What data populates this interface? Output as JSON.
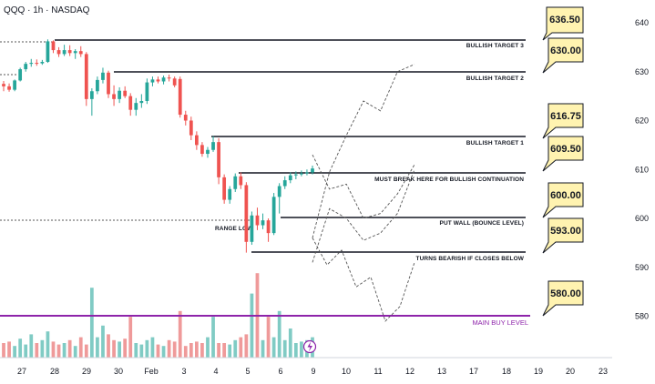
{
  "chart_data": {
    "type": "candlestick",
    "title": "QQQ · 1h · NASDAQ",
    "y_axis": {
      "ticks": [
        580,
        590,
        600,
        610,
        620,
        630,
        640
      ],
      "position": "right"
    },
    "x_axis": {
      "ticks": [
        "27",
        "28",
        "29",
        "30",
        "Feb",
        "3",
        "4",
        "5",
        "6",
        "9",
        "10",
        "11",
        "12",
        "13",
        "17",
        "18",
        "19",
        "20",
        "23"
      ]
    },
    "levels": [
      {
        "name": "BULLISH TARGET 3",
        "price": 636.5,
        "callout": "636.50"
      },
      {
        "name": "BULLISH TARGET 2",
        "price": 630.0,
        "callout": "630.00"
      },
      {
        "name": "BULLISH TARGET 1",
        "price": 616.75,
        "callout": "616.75"
      },
      {
        "name": "MUST BREAK HERE FOR BULLISH CONTINUATION",
        "price": 609.5,
        "callout": "609.50"
      },
      {
        "name": "PUT WALL (BOUNCE LEVEL)",
        "price": 600.0,
        "callout": "600.00"
      },
      {
        "name": "TURNS BEARISH IF CLOSES BELOW",
        "price": 593.0,
        "callout": "593.00"
      },
      {
        "name": "MAIN BUY LEVEL",
        "price": 580.0,
        "callout": "580.00"
      }
    ],
    "annotations": [
      "RANGE LOW"
    ],
    "candles": [
      {
        "o": 627.5,
        "h": 628.1,
        "l": 626.0,
        "c": 627.0
      },
      {
        "o": 627.0,
        "h": 627.6,
        "l": 625.9,
        "c": 626.3
      },
      {
        "o": 626.3,
        "h": 628.4,
        "l": 626.0,
        "c": 628.2
      },
      {
        "o": 628.2,
        "h": 630.8,
        "l": 628.0,
        "c": 630.5
      },
      {
        "o": 630.5,
        "h": 632.0,
        "l": 630.0,
        "c": 631.6
      },
      {
        "o": 631.6,
        "h": 632.6,
        "l": 631.0,
        "c": 631.8
      },
      {
        "o": 631.8,
        "h": 632.5,
        "l": 631.2,
        "c": 631.7
      },
      {
        "o": 631.7,
        "h": 632.4,
        "l": 631.4,
        "c": 632.0
      },
      {
        "o": 632.0,
        "h": 636.6,
        "l": 631.8,
        "c": 636.2
      },
      {
        "o": 636.2,
        "h": 636.4,
        "l": 633.8,
        "c": 634.4
      },
      {
        "o": 634.4,
        "h": 635.0,
        "l": 633.0,
        "c": 633.6
      },
      {
        "o": 633.6,
        "h": 635.5,
        "l": 633.2,
        "c": 634.4
      },
      {
        "o": 634.4,
        "h": 635.4,
        "l": 633.2,
        "c": 633.8
      },
      {
        "o": 633.8,
        "h": 634.6,
        "l": 632.6,
        "c": 634.2
      },
      {
        "o": 634.2,
        "h": 635.2,
        "l": 633.0,
        "c": 633.6
      },
      {
        "o": 633.6,
        "h": 634.0,
        "l": 623.0,
        "c": 624.4
      },
      {
        "o": 624.4,
        "h": 626.6,
        "l": 621.0,
        "c": 626.0
      },
      {
        "o": 626.0,
        "h": 629.0,
        "l": 625.4,
        "c": 628.3
      },
      {
        "o": 628.3,
        "h": 630.8,
        "l": 627.6,
        "c": 629.8
      },
      {
        "o": 629.8,
        "h": 630.2,
        "l": 624.6,
        "c": 625.4
      },
      {
        "o": 625.4,
        "h": 627.2,
        "l": 623.0,
        "c": 624.4
      },
      {
        "o": 624.4,
        "h": 626.8,
        "l": 623.6,
        "c": 626.1
      },
      {
        "o": 626.1,
        "h": 627.0,
        "l": 624.6,
        "c": 625.0
      },
      {
        "o": 625.0,
        "h": 625.6,
        "l": 621.0,
        "c": 622.2
      },
      {
        "o": 622.2,
        "h": 624.6,
        "l": 621.0,
        "c": 623.6
      },
      {
        "o": 623.6,
        "h": 625.4,
        "l": 622.6,
        "c": 624.0
      },
      {
        "o": 624.0,
        "h": 628.6,
        "l": 623.4,
        "c": 627.8
      },
      {
        "o": 627.8,
        "h": 629.0,
        "l": 627.0,
        "c": 628.4
      },
      {
        "o": 628.4,
        "h": 629.0,
        "l": 627.6,
        "c": 628.0
      },
      {
        "o": 628.0,
        "h": 629.2,
        "l": 627.4,
        "c": 628.8
      },
      {
        "o": 628.8,
        "h": 629.4,
        "l": 628.0,
        "c": 628.6
      },
      {
        "o": 628.6,
        "h": 629.0,
        "l": 626.8,
        "c": 627.2
      },
      {
        "o": 628.5,
        "h": 629.0,
        "l": 620.6,
        "c": 621.2
      },
      {
        "o": 621.2,
        "h": 622.0,
        "l": 619.0,
        "c": 620.0
      },
      {
        "o": 620.0,
        "h": 620.8,
        "l": 616.0,
        "c": 617.0
      },
      {
        "o": 617.0,
        "h": 617.8,
        "l": 614.0,
        "c": 615.0
      },
      {
        "o": 615.0,
        "h": 615.6,
        "l": 612.6,
        "c": 613.2
      },
      {
        "o": 613.2,
        "h": 614.6,
        "l": 612.4,
        "c": 614.0
      },
      {
        "o": 614.0,
        "h": 616.8,
        "l": 613.6,
        "c": 615.6
      },
      {
        "o": 615.6,
        "h": 616.4,
        "l": 607.0,
        "c": 608.4
      },
      {
        "o": 608.4,
        "h": 609.0,
        "l": 603.0,
        "c": 603.8
      },
      {
        "o": 603.8,
        "h": 606.6,
        "l": 603.0,
        "c": 606.0
      },
      {
        "o": 606.0,
        "h": 609.2,
        "l": 605.4,
        "c": 608.6
      },
      {
        "o": 608.6,
        "h": 609.4,
        "l": 606.0,
        "c": 606.8
      },
      {
        "o": 606.8,
        "h": 607.4,
        "l": 593.0,
        "c": 595.2
      },
      {
        "o": 595.2,
        "h": 601.4,
        "l": 594.6,
        "c": 600.6
      },
      {
        "o": 600.6,
        "h": 602.2,
        "l": 597.6,
        "c": 598.6
      },
      {
        "o": 598.6,
        "h": 601.0,
        "l": 597.8,
        "c": 599.6
      },
      {
        "o": 599.6,
        "h": 600.0,
        "l": 595.2,
        "c": 597.0
      },
      {
        "o": 597.0,
        "h": 605.2,
        "l": 596.6,
        "c": 604.4
      },
      {
        "o": 604.4,
        "h": 607.2,
        "l": 601.0,
        "c": 606.6
      },
      {
        "o": 606.6,
        "h": 608.6,
        "l": 606.0,
        "c": 607.8
      },
      {
        "o": 607.8,
        "h": 609.4,
        "l": 607.2,
        "c": 608.8
      },
      {
        "o": 608.8,
        "h": 609.6,
        "l": 608.0,
        "c": 609.0
      },
      {
        "o": 609.0,
        "h": 609.8,
        "l": 608.6,
        "c": 609.2
      },
      {
        "o": 609.2,
        "h": 610.0,
        "l": 608.8,
        "c": 609.4
      },
      {
        "o": 609.4,
        "h": 610.8,
        "l": 609.0,
        "c": 610.2
      }
    ],
    "volume": [
      10,
      11,
      8,
      13,
      9,
      16,
      10,
      12,
      18,
      11,
      9,
      10,
      12,
      8,
      14,
      9,
      48,
      14,
      22,
      16,
      12,
      11,
      13,
      28,
      10,
      9,
      12,
      14,
      9,
      8,
      12,
      11,
      32,
      8,
      10,
      11,
      10,
      14,
      28,
      10,
      10,
      9,
      12,
      14,
      16,
      44,
      58,
      12,
      28,
      14,
      32,
      12,
      20,
      10,
      11,
      12,
      14
    ],
    "projection_paths": [
      [
        [
          617,
          596.0
        ],
        [
          612,
          609.5
        ],
        [
          607,
          617.0
        ],
        [
          602,
          624.0
        ],
        [
          598,
          622.0
        ],
        [
          594,
          630.0
        ],
        [
          593,
          631.5
        ]
      ],
      [
        [
          617,
          591.0
        ],
        [
          611,
          602.0
        ],
        [
          606,
          600.0
        ],
        [
          601,
          595.5
        ],
        [
          598,
          597.0
        ],
        [
          592,
          601.0
        ],
        [
          589,
          610.0
        ]
      ],
      [
        [
          617,
          596.0
        ],
        [
          611,
          590.5
        ],
        [
          606,
          593.5
        ],
        [
          602,
          586.0
        ],
        [
          598,
          588.0
        ],
        [
          594,
          579.0
        ],
        [
          591,
          582.0
        ],
        [
          588,
          591.0
        ]
      ],
      [
        [
          617,
          613.0
        ],
        [
          612,
          606.0
        ],
        [
          608,
          607.0
        ],
        [
          603,
          600.0
        ],
        [
          600,
          601.0
        ],
        [
          595,
          605.0
        ],
        [
          590,
          611.0
        ]
      ]
    ]
  },
  "annotations_text": {
    "lvl_t3": "BULLISH TARGET 3",
    "lvl_t2": "BULLISH TARGET 2",
    "lvl_t1": "BULLISH TARGET 1",
    "lvl_must": "MUST BREAK HERE FOR BULLISH CONTINUATION",
    "lvl_put": "PUT WALL (BOUNCE LEVEL)",
    "lvl_bear": "TURNS BEARISH IF CLOSES BELOW",
    "lvl_buy": "MAIN BUY LEVEL",
    "range_low": "RANGE LOW",
    "c_636": "636.50",
    "c_630": "630.00",
    "c_616": "616.75",
    "c_609": "609.50",
    "c_600": "600.00",
    "c_593": "593.00",
    "c_580": "580.00"
  },
  "colors": {
    "up": "#26a69a",
    "down": "#ef5350",
    "vol_up": "#80cbc4",
    "vol_down": "#ef9a9a",
    "callout_bg": "#fff3b0",
    "main_buy": "#8e24aa"
  }
}
